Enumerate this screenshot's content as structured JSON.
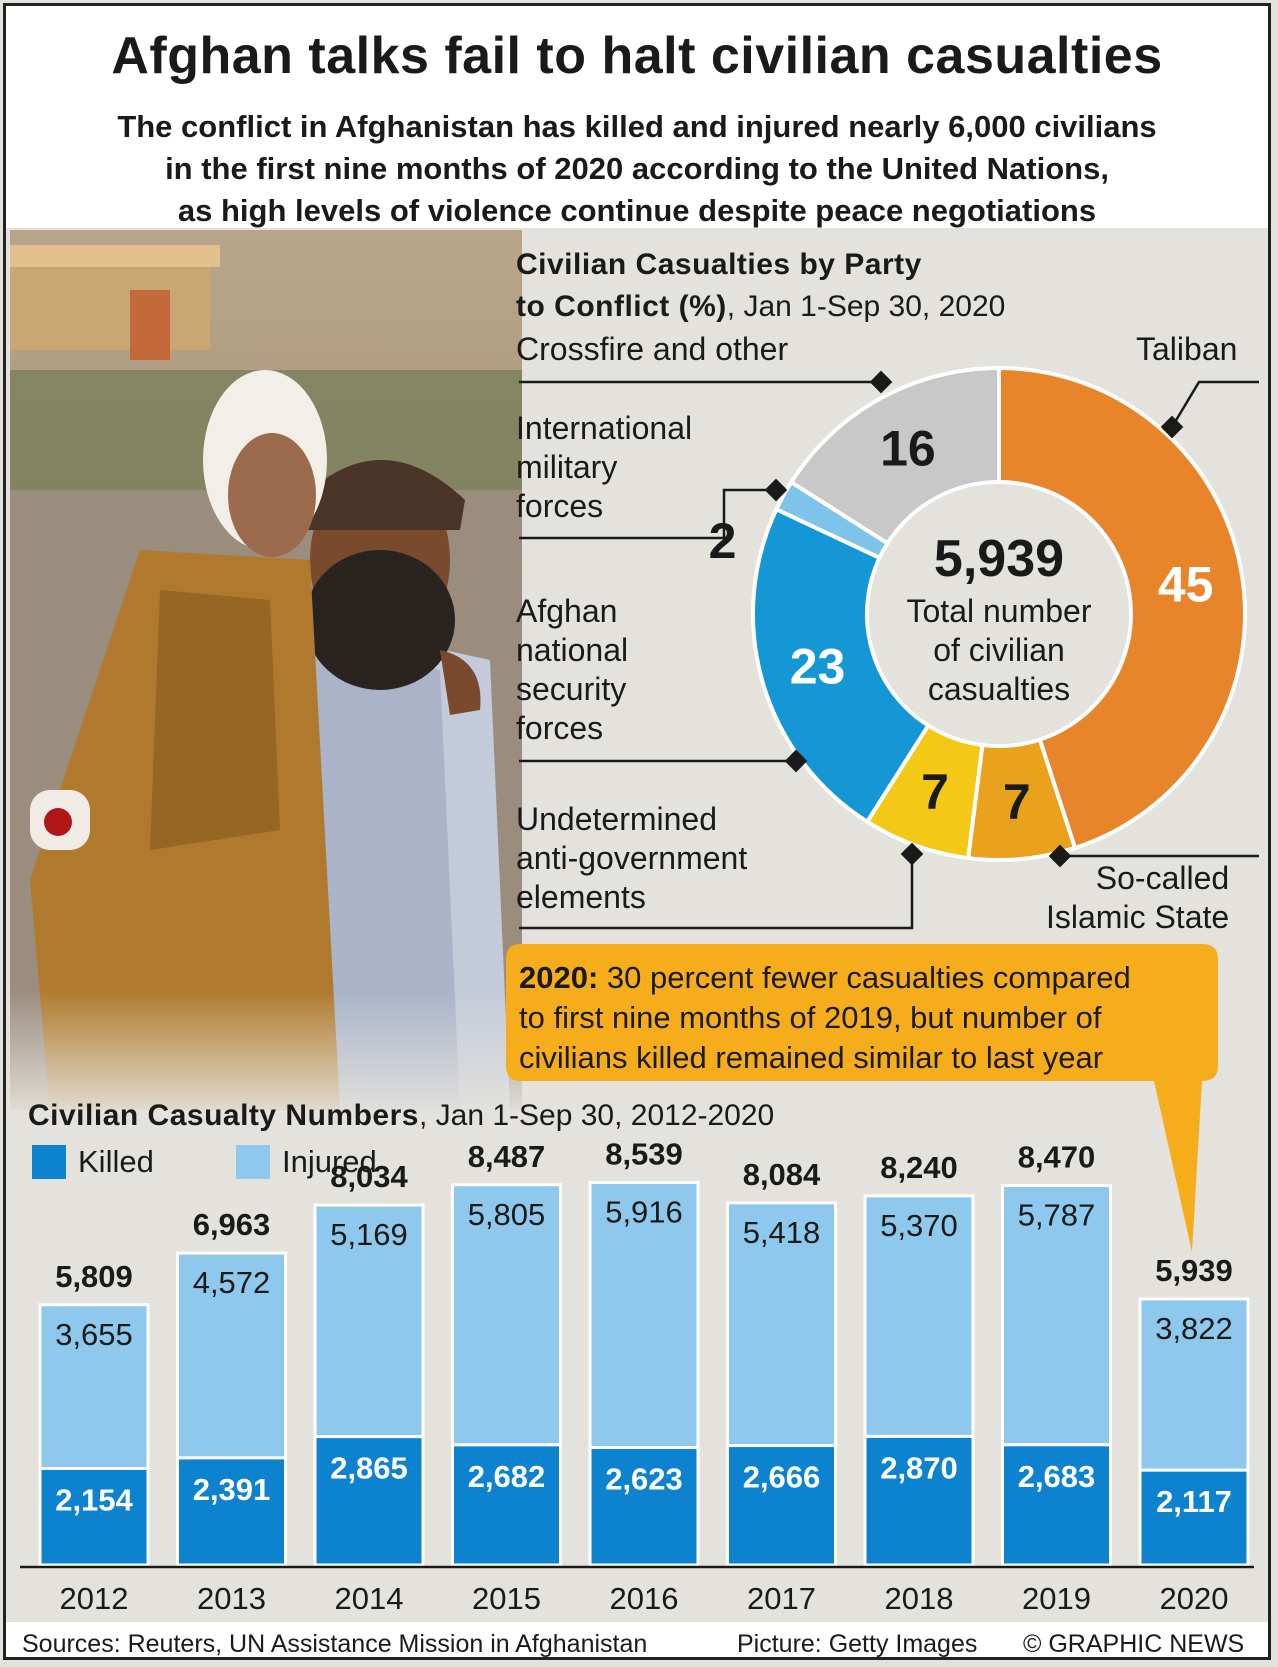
{
  "title": "Afghan talks fail to halt civilian casualties",
  "subtitle": [
    "The conflict in Afghanistan has killed and injured nearly 6,000 civilians",
    "in the first nine months of 2020 according to the United Nations,",
    "as high levels of violence continue despite peace negotiations"
  ],
  "colors": {
    "taliban": "#e8852a",
    "islamic_state": "#eaa11c",
    "undetermined": "#f3c816",
    "afghan_forces": "#1597d6",
    "international": "#7ec3ea",
    "crossfire": "#c8c8c8",
    "killed": "#0d82cf",
    "injured": "#8ec8ec",
    "callout": "#f5ad1b"
  },
  "chart_data": [
    {
      "type": "pie",
      "title": "Civilian Casualties by Party to Conflict (%)",
      "title_line1": "Civilian Casualties by Party",
      "title_line2": "to Conflict (%)",
      "subtitle": ", Jan 1-Sep 30, 2020",
      "center_value": "5,939",
      "center_label": [
        "Total number",
        "of civilian",
        "casualties"
      ],
      "slices": [
        {
          "name": "Taliban",
          "value": 45,
          "label": "45",
          "color_key": "taliban"
        },
        {
          "name": "So-called Islamic State",
          "value": 7,
          "label": "7",
          "color_key": "islamic_state"
        },
        {
          "name": "Undetermined anti-government elements",
          "value": 7,
          "label": "7",
          "color_key": "undetermined"
        },
        {
          "name": "Afghan national security forces",
          "value": 23,
          "label": "23",
          "color_key": "afghan_forces"
        },
        {
          "name": "International military forces",
          "value": 2,
          "label": "2",
          "color_key": "international"
        },
        {
          "name": "Crossfire and other",
          "value": 16,
          "label": "16",
          "color_key": "crossfire"
        }
      ],
      "labels": {
        "taliban": "Taliban",
        "islamic_state": "So-called\nIslamic State",
        "undetermined": "Undetermined\nanti-government\nelements",
        "afghan_forces": "Afghan\nnational\nsecurity\nforces",
        "international": "International\nmilitary\nforces",
        "crossfire": "Crossfire and other"
      }
    },
    {
      "type": "bar",
      "stacked": true,
      "title": "Civilian Casualty Numbers",
      "subtitle": ", Jan 1-Sep 30, 2012-2020",
      "categories": [
        "2012",
        "2013",
        "2014",
        "2015",
        "2016",
        "2017",
        "2018",
        "2019",
        "2020"
      ],
      "series": [
        {
          "name": "Killed",
          "color_key": "killed",
          "values": [
            2154,
            2391,
            2865,
            2682,
            2623,
            2666,
            2870,
            2683,
            2117
          ],
          "labels": [
            "2,154",
            "2,391",
            "2,865",
            "2,682",
            "2,623",
            "2,666",
            "2,870",
            "2,683",
            "2,117"
          ]
        },
        {
          "name": "Injured",
          "color_key": "injured",
          "values": [
            3655,
            4572,
            5169,
            5805,
            5916,
            5418,
            5370,
            5787,
            3822
          ],
          "labels": [
            "3,655",
            "4,572",
            "5,169",
            "5,805",
            "5,916",
            "5,418",
            "5,370",
            "5,787",
            "3,822"
          ]
        }
      ],
      "totals": [
        5809,
        6963,
        8034,
        8487,
        8539,
        8084,
        8240,
        8470,
        5939
      ],
      "total_labels": [
        "5,809",
        "6,963",
        "8,034",
        "8,487",
        "8,539",
        "8,084",
        "8,240",
        "8,470",
        "5,939"
      ]
    }
  ],
  "callout": {
    "bold": "2020:",
    "text_line1": " 30 percent fewer casualties compared",
    "text_line2": "to first nine months of 2019, but number of",
    "text_line3": "civilians killed remained similar to last year"
  },
  "legend": {
    "killed": "Killed",
    "injured": "Injured"
  },
  "footer": {
    "sources": "Sources: Reuters, UN Assistance Mission in Afghanistan",
    "picture": "Picture: Getty Images",
    "copyright": "© GRAPHIC NEWS"
  }
}
